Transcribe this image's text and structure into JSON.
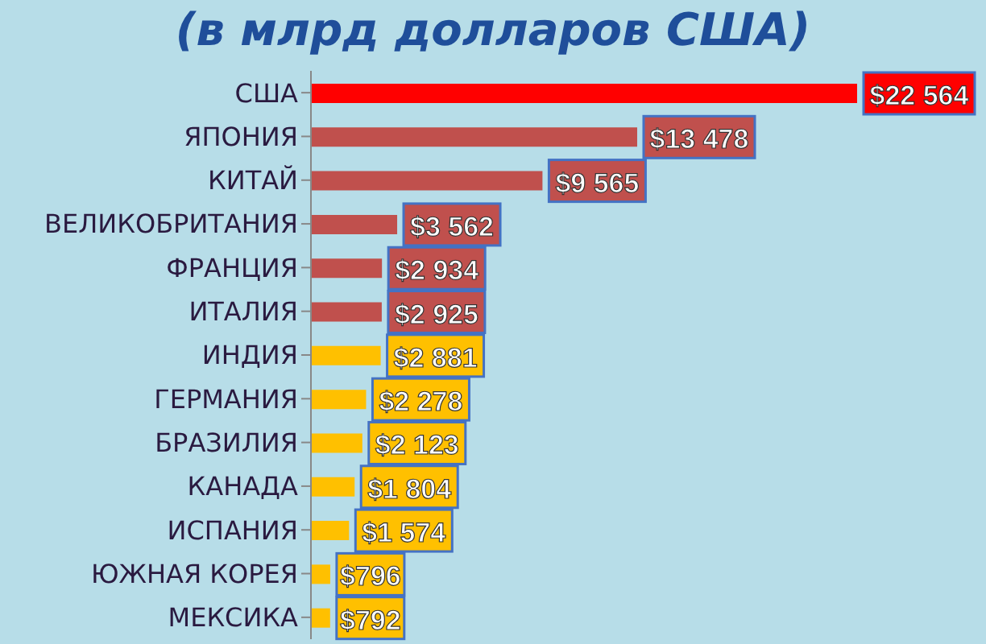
{
  "chart_data": {
    "type": "bar",
    "orientation": "horizontal",
    "title": "(в млрд долларов США)",
    "categories": [
      "США",
      "ЯПОНИЯ",
      "КИТАЙ",
      "ВЕЛИКОБРИТАНИЯ",
      "ФРАНЦИЯ",
      "ИТАЛИЯ",
      "ИНДИЯ",
      "ГЕРМАНИЯ",
      "БРАЗИЛИЯ",
      "КАНАДА",
      "ИСПАНИЯ",
      "ЮЖНАЯ КОРЕЯ",
      "МЕКСИКА"
    ],
    "values": [
      22564,
      13478,
      9565,
      3562,
      2934,
      2925,
      2881,
      2278,
      2123,
      1804,
      1574,
      796,
      792
    ],
    "colors": [
      "#ff0000",
      "#c0504d",
      "#c0504d",
      "#c0504d",
      "#c0504d",
      "#c0504d",
      "#ffc000",
      "#ffc000",
      "#ffc000",
      "#ffc000",
      "#ffc000",
      "#ffc000",
      "#ffc000"
    ],
    "value_labels": [
      "$22 564",
      "$13 478",
      "$9 565",
      "$3 562",
      "$2 934",
      "$2 925",
      "$2 881",
      "$2 278",
      "$2 123",
      "$1 804",
      "$1 574",
      "$796",
      "$792"
    ],
    "tick_labels": "y"
  }
}
